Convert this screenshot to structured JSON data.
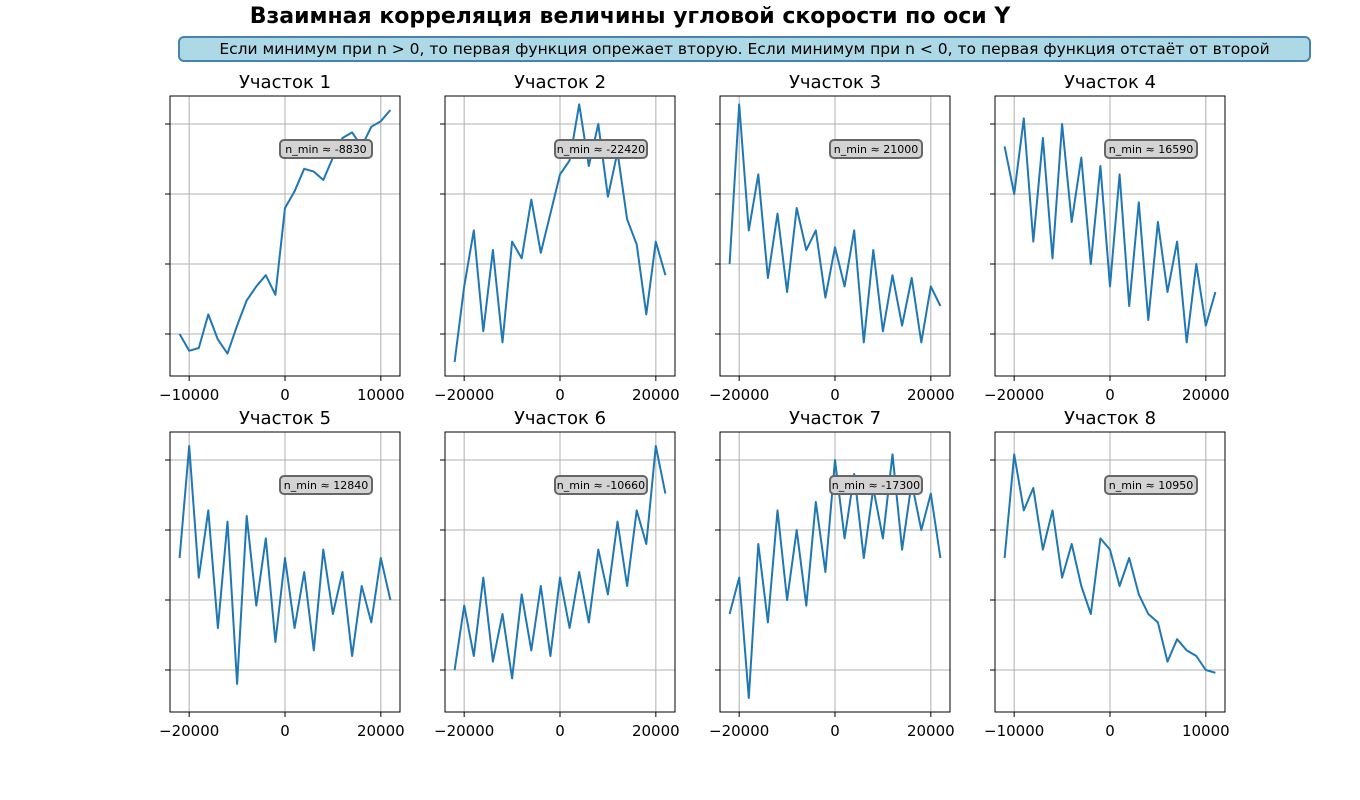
{
  "figure": {
    "title": "Взаимная корреляция величины угловой скорости по оси Y",
    "note": "Если минимум при n > 0, то первая функция опрежает вторую. Если минимум при n < 0, то первая функция отстаёт от второй"
  },
  "colors": {
    "line": "#1f77b4",
    "grid": "#b0b0b0",
    "note_bg": "#add8e6",
    "note_border": "#4682b4",
    "annotation_bg": "#d3d3d3",
    "annotation_border": "#666666"
  },
  "chart_data": [
    {
      "type": "line",
      "title": "Участок 1",
      "annotation": "n_min ≈ -8830",
      "xlim": [
        -12000,
        12000
      ],
      "xticks": [
        -10000,
        0,
        10000
      ],
      "ylim": [
        0,
        1
      ],
      "grid": true,
      "x": [
        -11000,
        -10000,
        -9000,
        -8000,
        -7000,
        -6000,
        -5000,
        -4000,
        -3000,
        -2000,
        -1000,
        0,
        1000,
        2000,
        3000,
        4000,
        5000,
        6000,
        7000,
        8000,
        9000,
        10000,
        11000
      ],
      "y": [
        0.15,
        0.09,
        0.1,
        0.22,
        0.13,
        0.08,
        0.18,
        0.27,
        0.32,
        0.36,
        0.29,
        0.6,
        0.66,
        0.74,
        0.73,
        0.7,
        0.78,
        0.85,
        0.87,
        0.82,
        0.89,
        0.91,
        0.95
      ]
    },
    {
      "type": "line",
      "title": "Участок 2",
      "annotation": "n_min ≈ -22420",
      "xlim": [
        -24000,
        24000
      ],
      "xticks": [
        -20000,
        0,
        20000
      ],
      "ylim": [
        0,
        1
      ],
      "grid": true,
      "x": [
        -22000,
        -20000,
        -18000,
        -16000,
        -14000,
        -12000,
        -10000,
        -8000,
        -6000,
        -4000,
        -2000,
        0,
        2000,
        4000,
        6000,
        8000,
        10000,
        12000,
        14000,
        16000,
        18000,
        20000,
        22000
      ],
      "y": [
        0.05,
        0.32,
        0.52,
        0.16,
        0.45,
        0.12,
        0.48,
        0.42,
        0.63,
        0.44,
        0.58,
        0.72,
        0.77,
        0.97,
        0.75,
        0.9,
        0.64,
        0.8,
        0.56,
        0.47,
        0.22,
        0.48,
        0.36
      ]
    },
    {
      "type": "line",
      "title": "Участок 3",
      "annotation": "n_min ≈ 21000",
      "xlim": [
        -24000,
        24000
      ],
      "xticks": [
        -20000,
        0,
        20000
      ],
      "ylim": [
        0,
        1
      ],
      "grid": true,
      "x": [
        -22000,
        -20000,
        -18000,
        -16000,
        -14000,
        -12000,
        -10000,
        -8000,
        -6000,
        -4000,
        -2000,
        0,
        2000,
        4000,
        6000,
        8000,
        10000,
        12000,
        14000,
        16000,
        18000,
        20000,
        22000
      ],
      "y": [
        0.4,
        0.97,
        0.52,
        0.72,
        0.35,
        0.58,
        0.3,
        0.6,
        0.45,
        0.52,
        0.28,
        0.46,
        0.32,
        0.52,
        0.12,
        0.45,
        0.16,
        0.36,
        0.18,
        0.35,
        0.12,
        0.32,
        0.25
      ]
    },
    {
      "type": "line",
      "title": "Участок 4",
      "annotation": "n_min ≈ 16590",
      "xlim": [
        -24000,
        24000
      ],
      "xticks": [
        -20000,
        0,
        20000
      ],
      "ylim": [
        0,
        1
      ],
      "grid": true,
      "x": [
        -22000,
        -20000,
        -18000,
        -16000,
        -14000,
        -12000,
        -10000,
        -8000,
        -6000,
        -4000,
        -2000,
        0,
        2000,
        4000,
        6000,
        8000,
        10000,
        12000,
        14000,
        16000,
        18000,
        20000,
        22000
      ],
      "y": [
        0.82,
        0.65,
        0.92,
        0.48,
        0.85,
        0.42,
        0.9,
        0.55,
        0.78,
        0.4,
        0.75,
        0.32,
        0.72,
        0.25,
        0.62,
        0.2,
        0.55,
        0.3,
        0.48,
        0.12,
        0.4,
        0.18,
        0.3
      ]
    },
    {
      "type": "line",
      "title": "Участок 5",
      "annotation": "n_min ≈ 12840",
      "xlim": [
        -24000,
        24000
      ],
      "xticks": [
        -20000,
        0,
        20000
      ],
      "ylim": [
        0,
        1
      ],
      "grid": true,
      "x": [
        -22000,
        -20000,
        -18000,
        -16000,
        -14000,
        -12000,
        -10000,
        -8000,
        -6000,
        -4000,
        -2000,
        0,
        2000,
        4000,
        6000,
        8000,
        10000,
        12000,
        14000,
        16000,
        18000,
        20000,
        22000
      ],
      "y": [
        0.55,
        0.95,
        0.48,
        0.72,
        0.3,
        0.68,
        0.1,
        0.7,
        0.38,
        0.62,
        0.25,
        0.55,
        0.3,
        0.5,
        0.22,
        0.58,
        0.35,
        0.5,
        0.2,
        0.45,
        0.32,
        0.55,
        0.4
      ]
    },
    {
      "type": "line",
      "title": "Участок 6",
      "annotation": "n_min ≈ -10660",
      "xlim": [
        -24000,
        24000
      ],
      "xticks": [
        -20000,
        0,
        20000
      ],
      "ylim": [
        0,
        1
      ],
      "grid": true,
      "x": [
        -22000,
        -20000,
        -18000,
        -16000,
        -14000,
        -12000,
        -10000,
        -8000,
        -6000,
        -4000,
        -2000,
        0,
        2000,
        4000,
        6000,
        8000,
        10000,
        12000,
        14000,
        16000,
        18000,
        20000,
        22000
      ],
      "y": [
        0.15,
        0.38,
        0.2,
        0.48,
        0.18,
        0.35,
        0.12,
        0.42,
        0.22,
        0.45,
        0.2,
        0.48,
        0.3,
        0.5,
        0.32,
        0.58,
        0.42,
        0.68,
        0.45,
        0.72,
        0.6,
        0.95,
        0.78
      ]
    },
    {
      "type": "line",
      "title": "Участок 7",
      "annotation": "n_min ≈ -17300",
      "xlim": [
        -24000,
        24000
      ],
      "xticks": [
        -20000,
        0,
        20000
      ],
      "ylim": [
        0,
        1
      ],
      "grid": true,
      "x": [
        -22000,
        -20000,
        -18000,
        -16000,
        -14000,
        -12000,
        -10000,
        -8000,
        -6000,
        -4000,
        -2000,
        0,
        2000,
        4000,
        6000,
        8000,
        10000,
        12000,
        14000,
        16000,
        18000,
        20000,
        22000
      ],
      "y": [
        0.35,
        0.48,
        0.05,
        0.6,
        0.32,
        0.72,
        0.4,
        0.65,
        0.38,
        0.75,
        0.5,
        0.9,
        0.62,
        0.85,
        0.55,
        0.8,
        0.62,
        0.92,
        0.58,
        0.82,
        0.65,
        0.78,
        0.55
      ]
    },
    {
      "type": "line",
      "title": "Участок 8",
      "annotation": "n_min ≈ 10950",
      "xlim": [
        -12000,
        12000
      ],
      "xticks": [
        -10000,
        0,
        10000
      ],
      "ylim": [
        0,
        1
      ],
      "grid": true,
      "x": [
        -11000,
        -10000,
        -9000,
        -8000,
        -7000,
        -6000,
        -5000,
        -4000,
        -3000,
        -2000,
        -1000,
        0,
        1000,
        2000,
        3000,
        4000,
        5000,
        6000,
        7000,
        8000,
        9000,
        10000,
        11000
      ],
      "y": [
        0.55,
        0.92,
        0.72,
        0.8,
        0.58,
        0.72,
        0.48,
        0.6,
        0.45,
        0.35,
        0.62,
        0.58,
        0.45,
        0.55,
        0.42,
        0.35,
        0.32,
        0.18,
        0.26,
        0.22,
        0.2,
        0.15,
        0.14
      ]
    }
  ]
}
